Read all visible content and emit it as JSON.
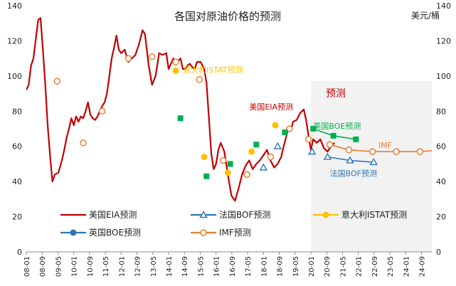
{
  "chart_data": {
    "type": "line",
    "title": "各国对原油价格的预测",
    "unit_label": "美元/桶",
    "forecast_label": "预测",
    "ylim": [
      0,
      140
    ],
    "yticks": [
      0,
      20,
      40,
      60,
      80,
      100,
      120,
      140
    ],
    "xlim": [
      2008.0,
      2025.1
    ],
    "xticks": [
      "08-01",
      "08-09",
      "09-05",
      "10-01",
      "10-09",
      "11-05",
      "12-01",
      "12-09",
      "13-05",
      "14-01",
      "14-09",
      "15-05",
      "16-01",
      "16-09",
      "17-05",
      "18-01",
      "18-09",
      "19-05",
      "20-01",
      "20-09",
      "21-05",
      "22-01",
      "22-09",
      "23-05",
      "24-01",
      "24-09"
    ],
    "forecast_shade_start": 2020.0,
    "colors": {
      "eia": "#c00000",
      "bof": "#2e75b6",
      "istat": "#ffc000",
      "boe": "#00b050",
      "imf": "#ed7d31",
      "shade": "#f2f2f2",
      "axis": "#595959"
    },
    "legend": [
      {
        "label": "美国EIA预测",
        "series": "eia",
        "marker": "none"
      },
      {
        "label": "法国BOF预测",
        "series": "bof",
        "marker": "triangle-open"
      },
      {
        "label": "意大利ISTAT预测",
        "series": "istat",
        "marker": "circle"
      },
      {
        "label": "英国BOE预测",
        "series": "boe_legend",
        "marker": "circle"
      },
      {
        "label": "IMF预测",
        "series": "imf",
        "marker": "circle-open"
      }
    ],
    "annotations": [
      {
        "text": "意大利ISTAT预测",
        "series": "istat",
        "at": [
          2014.6,
          102
        ]
      },
      {
        "text": "美国EIA预测",
        "series": "eia",
        "at": [
          2017.4,
          81
        ]
      },
      {
        "text": "英国BOE预测",
        "series": "boe",
        "at": [
          2020.1,
          70
        ]
      },
      {
        "text": "IMF",
        "series": "imf",
        "at": [
          2022.85,
          59
        ]
      },
      {
        "text": "法国BOF预测",
        "series": "bof",
        "at": [
          2020.8,
          43
        ]
      }
    ],
    "series": {
      "eia": {
        "x": [
          2008.0,
          2008.1,
          2008.2,
          2008.3,
          2008.4,
          2008.5,
          2008.6,
          2008.7,
          2008.8,
          2008.9,
          2009.0,
          2009.1,
          2009.2,
          2009.35,
          2009.5,
          2009.6,
          2009.7,
          2009.8,
          2009.9,
          2010.0,
          2010.1,
          2010.2,
          2010.3,
          2010.4,
          2010.5,
          2010.6,
          2010.7,
          2010.8,
          2010.9,
          2011.0,
          2011.1,
          2011.2,
          2011.3,
          2011.4,
          2011.5,
          2011.6,
          2011.7,
          2011.8,
          2011.9,
          2012.0,
          2012.15,
          2012.3,
          2012.45,
          2012.6,
          2012.75,
          2012.9,
          2013.0,
          2013.15,
          2013.3,
          2013.45,
          2013.6,
          2013.75,
          2013.9,
          2014.0,
          2014.2,
          2014.35,
          2014.5,
          2014.6,
          2014.7,
          2014.8,
          2014.9,
          2015.0,
          2015.1,
          2015.2,
          2015.35,
          2015.5,
          2015.6,
          2015.7,
          2015.8,
          2015.9,
          2016.0,
          2016.1,
          2016.2,
          2016.35,
          2016.5,
          2016.65,
          2016.8,
          2016.95,
          2017.1,
          2017.25,
          2017.4,
          2017.55,
          2017.7,
          2017.85,
          2018.0,
          2018.15,
          2018.3,
          2018.45,
          2018.6,
          2018.75,
          2018.85,
          2018.95,
          2019.05,
          2019.15,
          2019.25,
          2019.4,
          2019.55,
          2019.7,
          2019.8,
          2019.9,
          2020.0,
          2020.1,
          2020.25,
          2020.4,
          2020.55,
          2020.7,
          2020.85,
          2021.0
        ],
        "y": [
          92,
          95,
          106,
          110,
          121,
          132,
          133,
          115,
          95,
          72,
          55,
          40,
          44,
          45,
          52,
          58,
          65,
          70,
          76,
          72,
          77,
          74,
          77,
          76,
          80,
          85,
          78,
          76,
          75,
          77,
          80,
          83,
          85,
          90,
          100,
          110,
          116,
          123,
          115,
          113,
          115,
          108,
          110,
          112,
          118,
          126,
          124,
          107,
          95,
          100,
          113,
          112,
          113,
          104,
          110,
          108,
          110,
          104,
          104,
          106,
          107,
          105,
          104,
          108,
          108,
          104,
          96,
          76,
          56,
          47,
          50,
          58,
          62,
          57,
          44,
          32,
          29,
          36,
          44,
          49,
          52,
          47,
          50,
          52,
          55,
          58,
          52,
          48,
          50,
          54,
          60,
          65,
          70,
          69,
          74,
          75,
          79,
          81,
          75,
          66,
          58,
          64,
          62,
          64,
          59,
          57,
          60,
          62
        ]
      },
      "bof": {
        "x": [
          2018.0,
          2018.6,
          2020.05,
          2020.7,
          2021.65,
          2022.65
        ],
        "y": [
          48,
          60,
          57,
          54,
          52,
          51
        ]
      },
      "istat": {
        "x": [
          2014.3,
          2015.5,
          2016.5,
          2017.5,
          2018.5
        ],
        "y": [
          103,
          54,
          45,
          57,
          72
        ]
      },
      "boe": {
        "x": [
          2014.5,
          2015.6,
          2016.6,
          2017.7,
          2018.9,
          2020.1,
          2020.95,
          2021.9
        ],
        "y": [
          76,
          43,
          50,
          61,
          68,
          70,
          66,
          64
        ]
      },
      "imf": {
        "x": [
          2009.3,
          2010.4,
          2011.2,
          2012.3,
          2013.3,
          2014.3,
          2015.3,
          2016.3,
          2017.3,
          2018.3,
          2019.1,
          2019.9,
          2020.8,
          2021.6,
          2022.6,
          2023.6,
          2024.6,
          2025.6
        ],
        "y": [
          97,
          62,
          80,
          110,
          111,
          108,
          98,
          52,
          44,
          54,
          70,
          64,
          61,
          58,
          57,
          57,
          57,
          58
        ]
      }
    }
  }
}
